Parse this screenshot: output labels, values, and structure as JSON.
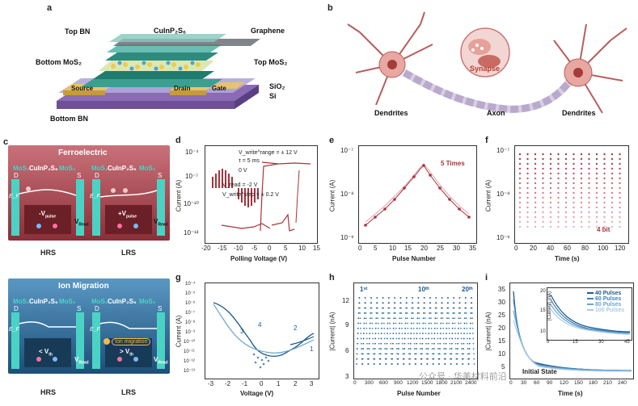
{
  "panels": {
    "a": {
      "letter": "a",
      "labels": {
        "top_bn": "Top BN",
        "cuinp2s6": "CuInP₂S₆",
        "graphene": "Graphene",
        "bottom_mos2": "Bottom MoS₂",
        "top_mos2": "Top MoS₂",
        "source": "Source",
        "drain": "Drain",
        "gate": "Gate",
        "sio2": "SiO₂",
        "si": "Si",
        "bottom_bn": "Bottom BN"
      }
    },
    "b": {
      "letter": "b",
      "labels": {
        "synapse": "Synapse",
        "dendrites_left": "Dendrites",
        "axon": "Axon",
        "dendrites_right": "Dendrites"
      }
    },
    "c": {
      "letter": "c",
      "ferro": {
        "title": "Ferroelectric",
        "mos2_l": "MoS₂",
        "cips": "CuInP₂S₆",
        "mos2_r": "MoS₂",
        "d": "D",
        "s": "S",
        "ef": "E_F",
        "hrs_pulse": "-V",
        "hrs_pulse_sub": "pulse",
        "lrs_pulse": "+V",
        "lrs_pulse_sub": "pulse",
        "vread": "V",
        "vread_sub": "Read",
        "hrs": "HRS",
        "lrs": "LRS"
      },
      "ion": {
        "title": "Ion Migration",
        "mos2_l": "MoS₂",
        "cips": "CuInP₂S₆",
        "mos2_r": "MoS₂",
        "d": "D",
        "s": "S",
        "ef": "E_F",
        "hrs_pulse": "< V",
        "lrs_pulse": "> V",
        "pulse_sub": "th",
        "ion_migration": "Ion migration",
        "vread": "V",
        "vread_sub": "Read",
        "hrs": "HRS",
        "lrs": "LRS"
      }
    },
    "d": {
      "letter": "d",
      "ylabel": "Current (A)",
      "xlabel": "Polling Voltage (V)",
      "xticks": [
        "-20",
        "-15",
        "-10",
        "-5",
        "0",
        "5",
        "10",
        "15"
      ],
      "yticks": [
        "10⁻⁴",
        "10⁻⁷",
        "10⁻¹⁰",
        "10⁻¹³"
      ],
      "legend": {
        "line1": "V_write^range = ± 12 V",
        "line2": "τ = 5 ms",
        "line3": "0 V",
        "line4": "V_read = -2 V",
        "line5": "V_write^step = ± 0.2 V"
      }
    },
    "e": {
      "letter": "e",
      "ylabel": "Current (A)",
      "xlabel": "Pulse Number",
      "annotation": "5 Times",
      "xticks": [
        "0",
        "5",
        "10",
        "15",
        "20",
        "25",
        "30",
        "35"
      ],
      "yticks": [
        "10⁻⁷",
        "10⁻⁸",
        "10⁻⁹"
      ]
    },
    "f": {
      "letter": "f",
      "ylabel": "Current (A)",
      "xlabel": "Time (s)",
      "annotation": "4 bit",
      "xticks": [
        "0",
        "20",
        "40",
        "60",
        "80",
        "100",
        "120"
      ],
      "yticks": [
        "10⁻⁷",
        "10⁻⁸",
        "10⁻⁹"
      ]
    },
    "g": {
      "letter": "g",
      "ylabel": "Current (A)",
      "xlabel": "Voltage (V)",
      "xticks": [
        "-3",
        "-2",
        "-1",
        "0",
        "1",
        "2",
        "3"
      ],
      "yticks": [
        "10⁻⁴",
        "10⁻⁵",
        "10⁻⁶",
        "10⁻⁷",
        "10⁻⁸",
        "10⁻⁹",
        "10⁻¹⁰",
        "10⁻¹¹",
        "10⁻¹²",
        "10⁻¹³"
      ],
      "curve_labels": [
        "1",
        "2",
        "3",
        "4"
      ]
    },
    "h": {
      "letter": "h",
      "ylabel": "|Current| (nA)",
      "xlabel": "Pulse Number",
      "xticks": [
        "0",
        "300",
        "600",
        "900",
        "1200",
        "1500",
        "1800",
        "2100",
        "2400"
      ],
      "yticks": [
        "12",
        "9",
        "6",
        "3"
      ],
      "ann1": "1ˢᵗ",
      "ann10": "10ᵗʰ",
      "ann20": "20ᵗʰ"
    },
    "i": {
      "letter": "i",
      "ylabel": "|Current| (nA)",
      "xlabel": "Time (s)",
      "xticks": [
        "0",
        "30",
        "60",
        "90",
        "120",
        "150",
        "180",
        "210",
        "240",
        "270"
      ],
      "yticks": [
        "5",
        "10",
        "15",
        "20",
        "25",
        "30",
        "35"
      ],
      "initial_state": "Initial State",
      "inset": {
        "ylabel": "|Current| (nA)",
        "xticks": [
          "0",
          "15",
          "30",
          "45"
        ],
        "yticks": [
          "10",
          "15",
          "20"
        ],
        "legend": [
          "40 Pulses",
          "60 Pulses",
          "80 Pulses",
          "100 Pulses"
        ]
      }
    }
  },
  "watermark": "公众号 · 华美材料前沿",
  "colors": {
    "ferro_red": "#a8323c",
    "ion_blue": "#1f5f8b",
    "data_red": "#a8323c",
    "data_blue": "#1d5a8e",
    "teal": "#2a9d8f"
  }
}
